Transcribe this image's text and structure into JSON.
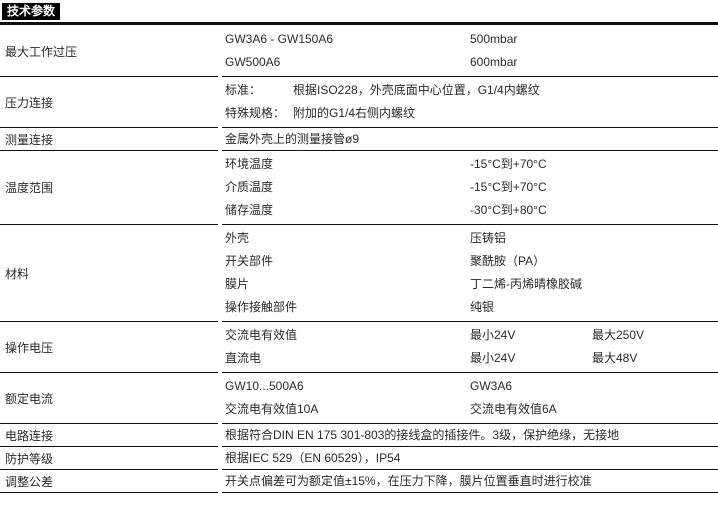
{
  "header": {
    "title": "技术参数"
  },
  "colors": {
    "header_bg": "#000000",
    "header_text": "#ffffff",
    "body_text": "#2b2b2b",
    "line": "#111111",
    "background": "#ffffff"
  },
  "table": {
    "rows": [
      {
        "label": "最大工作过压",
        "lines": [
          [
            {
              "text": "GW3A6 - GW150A6",
              "w": "sub"
            },
            {
              "text": "500mbar"
            }
          ],
          [
            {
              "text": "GW500A6",
              "w": "sub"
            },
            {
              "text": "600mbar"
            }
          ]
        ]
      },
      {
        "label": "压力连接",
        "lines": [
          [
            {
              "text": "标准：",
              "w": "key"
            },
            {
              "text": "根据ISO228，外壳底面中心位置，G1/4内螺纹"
            }
          ],
          [
            {
              "text": "特殊规格：",
              "w": "key"
            },
            {
              "text": "附加的G1/4右侧内螺纹"
            }
          ]
        ]
      },
      {
        "label": "测量连接",
        "lines": [
          [
            {
              "text": "金属外壳上的测量接管ø9"
            }
          ]
        ]
      },
      {
        "label": "温度范围",
        "lines": [
          [
            {
              "text": "环境温度",
              "w": "sub"
            },
            {
              "text": "-15°C到+70°C"
            }
          ],
          [
            {
              "text": "介质温度",
              "w": "sub"
            },
            {
              "text": "-15°C到+70°C"
            }
          ],
          [
            {
              "text": "储存温度",
              "w": "sub"
            },
            {
              "text": "-30°C到+80°C"
            }
          ]
        ]
      },
      {
        "label": "材料",
        "lines": [
          [
            {
              "text": "外壳",
              "w": "sub"
            },
            {
              "text": "压铸铝"
            }
          ],
          [
            {
              "text": "开关部件",
              "w": "sub"
            },
            {
              "text": "聚酰胺（PA）"
            }
          ],
          [
            {
              "text": "膜片",
              "w": "sub"
            },
            {
              "text": "丁二烯-丙烯晴橡胶碱"
            }
          ],
          [
            {
              "text": "操作接触部件",
              "w": "sub"
            },
            {
              "text": "纯银"
            }
          ]
        ]
      },
      {
        "label": "操作电压",
        "lines": [
          [
            {
              "text": "交流电有效值",
              "w": "sub"
            },
            {
              "text": "最小24V",
              "w": "mid"
            },
            {
              "text": "最大250V"
            }
          ],
          [
            {
              "text": "直流电",
              "w": "sub"
            },
            {
              "text": "最小24V",
              "w": "mid"
            },
            {
              "text": "最大48V"
            }
          ]
        ]
      },
      {
        "label": "额定电流",
        "lines": [
          [
            {
              "text": "GW10...500A6",
              "w": "sub"
            },
            {
              "text": "GW3A6"
            }
          ],
          [
            {
              "text": "交流电有效值10A",
              "w": "sub"
            },
            {
              "text": "交流电有效值6A"
            }
          ]
        ]
      },
      {
        "label": "电路连接",
        "lines": [
          [
            {
              "text": "根据符合DIN EN 175 301-803的接线盒的插接件。3级，保护绝缘，无接地"
            }
          ]
        ]
      },
      {
        "label": "防护等级",
        "lines": [
          [
            {
              "text": "根据IEC 529（EN 60529），IP54"
            }
          ]
        ]
      },
      {
        "label": "调整公差",
        "lines": [
          [
            {
              "text": "开关点偏差可为额定值±15%，在压力下降，膜片位置垂直时进行校准"
            }
          ]
        ]
      }
    ]
  }
}
